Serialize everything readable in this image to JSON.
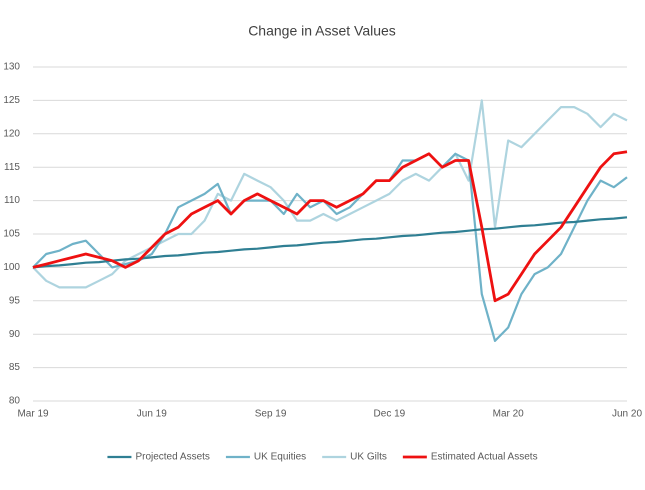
{
  "chart_data": {
    "type": "line",
    "title": "Change in Asset Values",
    "categories": [
      "Mar 19",
      null,
      null,
      null,
      null,
      null,
      null,
      null,
      null,
      "Jun 19",
      null,
      null,
      null,
      null,
      null,
      null,
      null,
      null,
      "Sep 19",
      null,
      null,
      null,
      null,
      null,
      null,
      null,
      null,
      "Dec 19",
      null,
      null,
      null,
      null,
      null,
      null,
      null,
      null,
      "Mar 20",
      null,
      null,
      null,
      null,
      null,
      null,
      null,
      null,
      "Jun 20"
    ],
    "series": [
      {
        "name": "Projected Assets",
        "color": "#2f7f93",
        "values": [
          100,
          100.2,
          100.3,
          100.5,
          100.7,
          100.8,
          101,
          101.2,
          101.3,
          101.5,
          101.7,
          101.8,
          102,
          102.2,
          102.3,
          102.5,
          102.7,
          102.8,
          103,
          103.2,
          103.3,
          103.5,
          103.7,
          103.8,
          104,
          104.2,
          104.3,
          104.5,
          104.7,
          104.8,
          105,
          105.2,
          105.3,
          105.5,
          105.7,
          105.8,
          106,
          106.2,
          106.3,
          106.5,
          106.7,
          106.8,
          107,
          107.2,
          107.3,
          107.5
        ]
      },
      {
        "name": "UK Equities",
        "color": "#6fb2c8",
        "values": [
          100,
          102,
          102.5,
          103.5,
          104,
          102,
          100,
          100.5,
          101,
          102,
          105,
          109,
          110,
          111,
          112.5,
          108,
          110,
          110,
          110,
          108,
          111,
          109,
          110,
          108,
          109,
          111,
          113,
          113,
          116,
          116,
          117,
          115,
          117,
          116,
          96,
          89,
          91,
          96,
          99,
          100,
          102,
          106,
          110,
          113,
          112,
          113.5
        ]
      },
      {
        "name": "UK Gilts",
        "color": "#aed4df",
        "values": [
          100,
          98,
          97,
          97,
          97,
          98,
          99,
          101,
          102,
          103,
          104,
          105,
          105,
          107,
          111,
          110,
          114,
          113,
          112,
          110,
          107,
          107,
          108,
          107,
          108,
          109,
          110,
          111,
          113,
          114,
          113,
          115,
          117,
          113,
          125,
          106,
          119,
          118,
          120,
          122,
          124,
          124,
          123,
          121,
          123,
          122
        ]
      },
      {
        "name": "Estimated Actual Assets",
        "color": "#ee1111",
        "values": [
          100,
          100.5,
          101,
          101.5,
          102,
          101.5,
          101,
          100,
          101,
          103,
          105,
          106,
          108,
          109,
          110,
          108,
          110,
          111,
          110,
          109,
          108,
          110,
          110,
          109,
          110,
          111,
          113,
          113,
          115,
          116,
          117,
          115,
          116,
          116,
          106,
          95,
          96,
          99,
          102,
          104,
          106,
          109,
          112,
          115,
          117,
          117.3
        ]
      }
    ],
    "ylim": [
      80,
      130
    ],
    "yticks": [
      80,
      85,
      90,
      95,
      100,
      105,
      110,
      115,
      120,
      125,
      130
    ],
    "grid": true,
    "legend": "bottom"
  }
}
